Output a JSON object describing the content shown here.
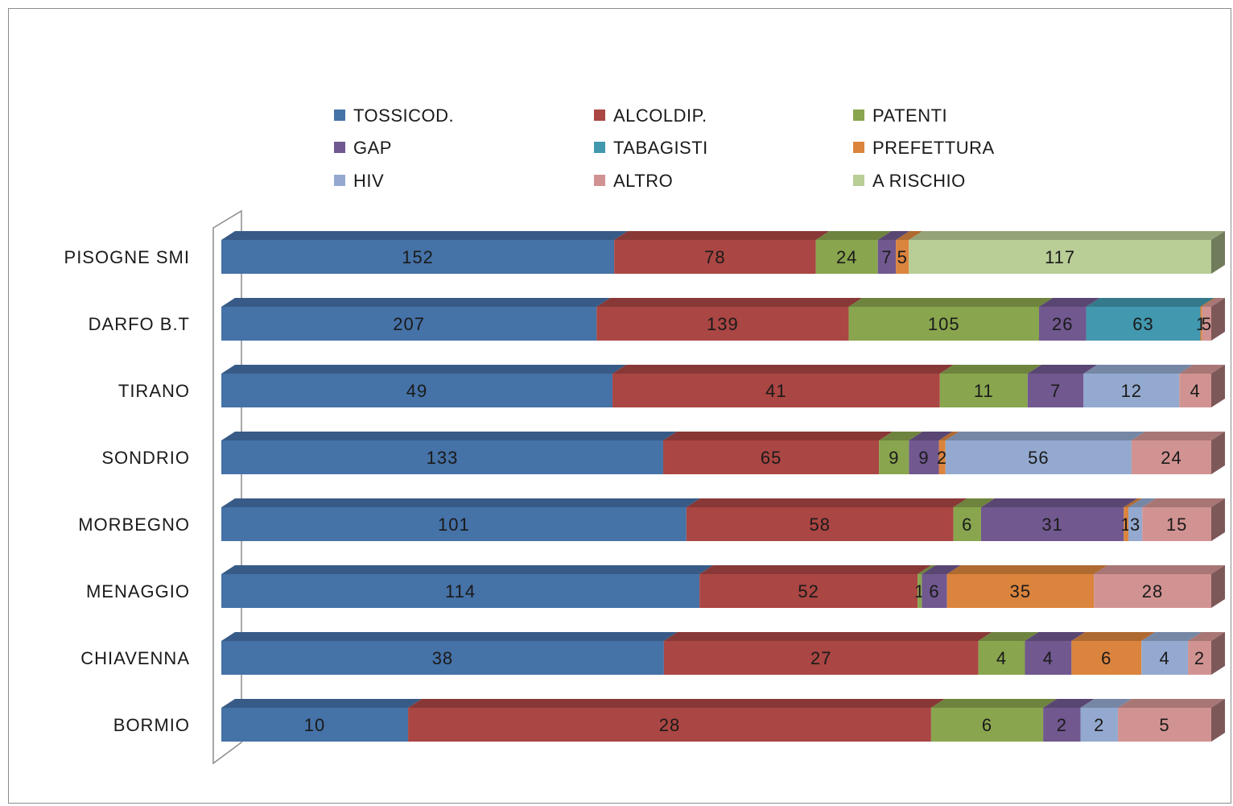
{
  "chart_data": {
    "type": "bar",
    "orientation": "horizontal",
    "stacked": "percent",
    "categories": [
      "PISOGNE SMI",
      "DARFO B.T",
      "TIRANO",
      "SONDRIO",
      "MORBEGNO",
      "MENAGGIO",
      "CHIAVENNA",
      "BORMIO"
    ],
    "series": [
      {
        "name": "TOSSICOD.",
        "color": "#4572a7",
        "values": [
          152,
          207,
          49,
          133,
          101,
          114,
          38,
          10
        ]
      },
      {
        "name": "ALCOLDIP.",
        "color": "#aa4643",
        "values": [
          78,
          139,
          41,
          65,
          58,
          52,
          27,
          28
        ]
      },
      {
        "name": "PATENTI",
        "color": "#89a54e",
        "values": [
          24,
          105,
          11,
          9,
          6,
          1,
          4,
          6
        ]
      },
      {
        "name": "GAP",
        "color": "#71588f",
        "values": [
          7,
          26,
          7,
          9,
          31,
          6,
          4,
          2
        ]
      },
      {
        "name": "TABAGISTI",
        "color": "#4198af",
        "values": [
          0,
          63,
          0,
          0,
          0,
          0,
          0,
          0
        ]
      },
      {
        "name": "PREFETTURA",
        "color": "#db843d",
        "values": [
          5,
          1,
          0,
          2,
          1,
          35,
          6,
          0
        ]
      },
      {
        "name": "HIV",
        "color": "#93a9cf",
        "values": [
          0,
          0,
          12,
          56,
          3,
          0,
          4,
          2
        ]
      },
      {
        "name": "ALTRO",
        "color": "#d19392",
        "values": [
          0,
          5,
          4,
          24,
          15,
          28,
          2,
          5
        ]
      },
      {
        "name": "A RISCHIO",
        "color": "#b9cd96",
        "values": [
          117,
          0,
          0,
          0,
          0,
          0,
          0,
          0
        ]
      }
    ],
    "xlim": [
      0,
      100
    ],
    "grid": false,
    "legend_position": "top",
    "data_labels": true
  }
}
